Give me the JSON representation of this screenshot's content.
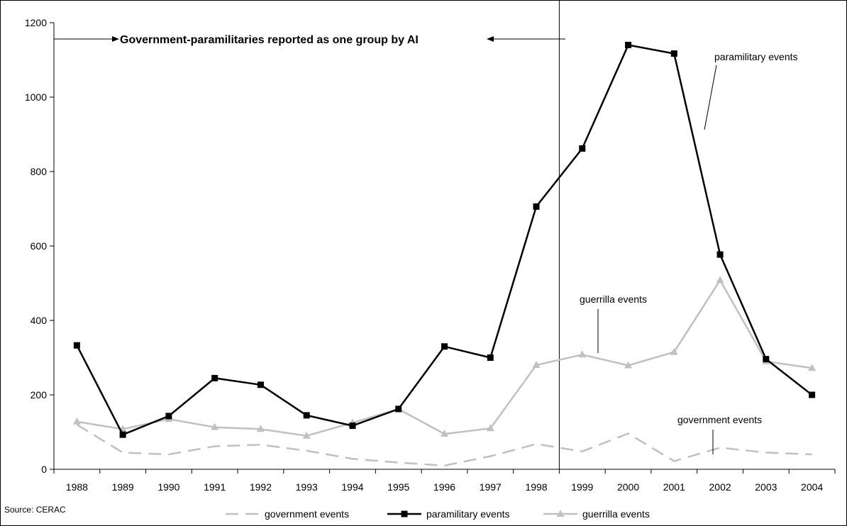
{
  "chart_data": {
    "type": "line",
    "title": "",
    "xlabel": "",
    "ylabel": "",
    "categories": [
      "1988",
      "1989",
      "1990",
      "1991",
      "1992",
      "1993",
      "1994",
      "1995",
      "1996",
      "1997",
      "1998",
      "1999",
      "2000",
      "2001",
      "2002",
      "2003",
      "2004"
    ],
    "ylim": [
      0,
      1200
    ],
    "yticks": [
      0,
      200,
      400,
      600,
      800,
      1000,
      1200
    ],
    "grid": false,
    "legend_position": "bottom",
    "series": [
      {
        "name": "government events",
        "values": [
          120,
          45,
          40,
          62,
          66,
          50,
          28,
          18,
          10,
          35,
          68,
          48,
          96,
          22,
          58,
          45,
          40
        ],
        "color": "#c0c0c0",
        "dash": true,
        "marker": "none"
      },
      {
        "name": "paramilitary events",
        "values": [
          333,
          93,
          143,
          245,
          227,
          145,
          117,
          162,
          330,
          300,
          706,
          862,
          1140,
          1117,
          577,
          296,
          200
        ],
        "color": "#000000",
        "dash": false,
        "marker": "square"
      },
      {
        "name": "guerrilla events",
        "values": [
          128,
          108,
          135,
          113,
          108,
          90,
          125,
          162,
          95,
          110,
          280,
          308,
          279,
          315,
          508,
          290,
          272
        ],
        "color": "#c0c0c0",
        "dash": false,
        "marker": "triangle"
      }
    ],
    "annotations": {
      "banner": "Government-paramilitaries reported as one group by AI",
      "paramilitary": "paramilitary events",
      "guerrilla": "guerrilla events",
      "government": "government events"
    },
    "source": "Source: CERAC"
  }
}
